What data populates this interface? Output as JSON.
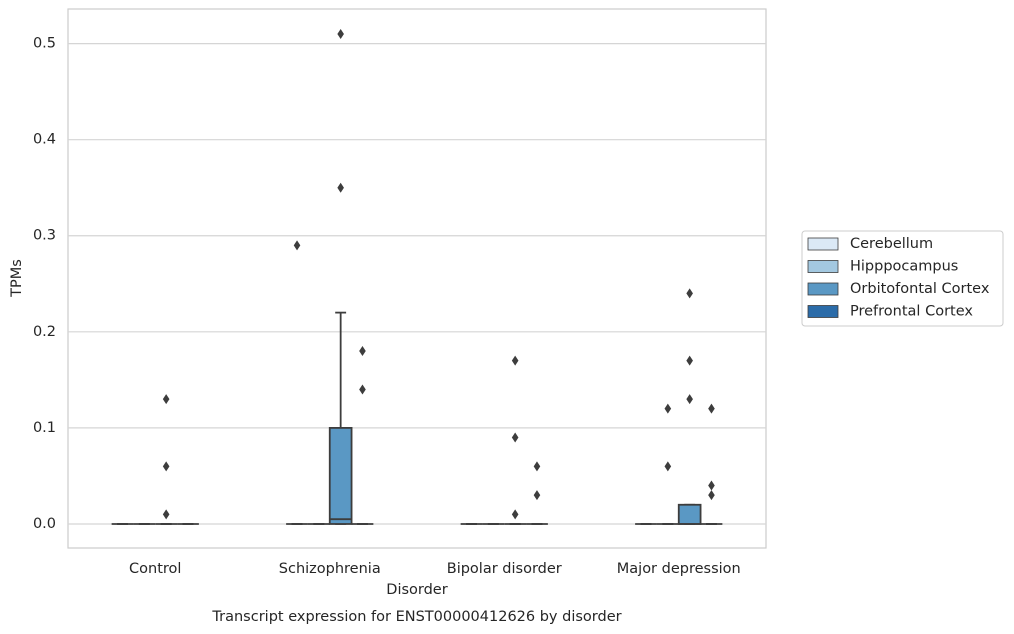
{
  "chart_data": {
    "type": "boxplot",
    "caption": "Transcript expression for ENST00000412626 by disorder",
    "x_label": "Disorder",
    "y_label": "TPMs",
    "categories": [
      "Control",
      "Schizophrenia",
      "Bipolar disorder",
      "Major depression"
    ],
    "ylim": [
      -0.025,
      0.536
    ],
    "yticks": [
      {
        "value": 0,
        "label": "0.0"
      },
      0.1,
      0.2,
      0.3,
      0.4,
      0.5
    ],
    "grid": true,
    "legend_position": "right",
    "series": [
      {
        "name": "Cerebellum",
        "color": "#dbe9f6",
        "boxes": [
          {
            "min": 0,
            "q1": 0,
            "median": 0,
            "q3": 0,
            "max": 0,
            "outliers": []
          },
          {
            "min": 0,
            "q1": 0,
            "median": 0,
            "q3": 0,
            "max": 0,
            "outliers": [
              0.29
            ]
          },
          {
            "min": 0,
            "q1": 0,
            "median": 0,
            "q3": 0,
            "max": 0,
            "outliers": []
          },
          {
            "min": 0,
            "q1": 0,
            "median": 0,
            "q3": 0,
            "max": 0,
            "outliers": []
          }
        ]
      },
      {
        "name": "Hipppocampus",
        "color": "#a3c8e0",
        "boxes": [
          {
            "min": 0,
            "q1": 0,
            "median": 0,
            "q3": 0,
            "max": 0,
            "outliers": []
          },
          {
            "min": 0,
            "q1": 0,
            "median": 0,
            "q3": 0,
            "max": 0,
            "outliers": []
          },
          {
            "min": 0,
            "q1": 0,
            "median": 0,
            "q3": 0,
            "max": 0,
            "outliers": []
          },
          {
            "min": 0,
            "q1": 0,
            "median": 0,
            "q3": 0,
            "max": 0,
            "outliers": [
              0.12,
              0.06
            ]
          }
        ]
      },
      {
        "name": "Orbitofontal Cortex",
        "color": "#5a98c4",
        "boxes": [
          {
            "min": 0,
            "q1": 0,
            "median": 0,
            "q3": 0,
            "max": 0,
            "outliers": [
              0.13,
              0.06,
              0.01
            ]
          },
          {
            "min": 0,
            "q1": 0,
            "median": 0.005,
            "q3": 0.1,
            "max": 0.22,
            "outliers": [
              0.51,
              0.35
            ]
          },
          {
            "min": 0,
            "q1": 0,
            "median": 0,
            "q3": 0,
            "max": 0,
            "outliers": [
              0.17,
              0.09,
              0.01
            ]
          },
          {
            "min": 0,
            "q1": 0,
            "median": 0,
            "q3": 0.02,
            "max": 0.02,
            "outliers": [
              0.24,
              0.17,
              0.13
            ]
          }
        ]
      },
      {
        "name": "Prefrontal Cortex",
        "color": "#2b6ca9",
        "boxes": [
          {
            "min": 0,
            "q1": 0,
            "median": 0,
            "q3": 0,
            "max": 0,
            "outliers": []
          },
          {
            "min": 0,
            "q1": 0,
            "median": 0,
            "q3": 0,
            "max": 0,
            "outliers": [
              0.18,
              0.14
            ]
          },
          {
            "min": 0,
            "q1": 0,
            "median": 0,
            "q3": 0,
            "max": 0,
            "outliers": [
              0.06,
              0.03
            ]
          },
          {
            "min": 0,
            "q1": 0,
            "median": 0,
            "q3": 0,
            "max": 0,
            "outliers": [
              0.12,
              0.04,
              0.03
            ]
          }
        ]
      }
    ]
  }
}
